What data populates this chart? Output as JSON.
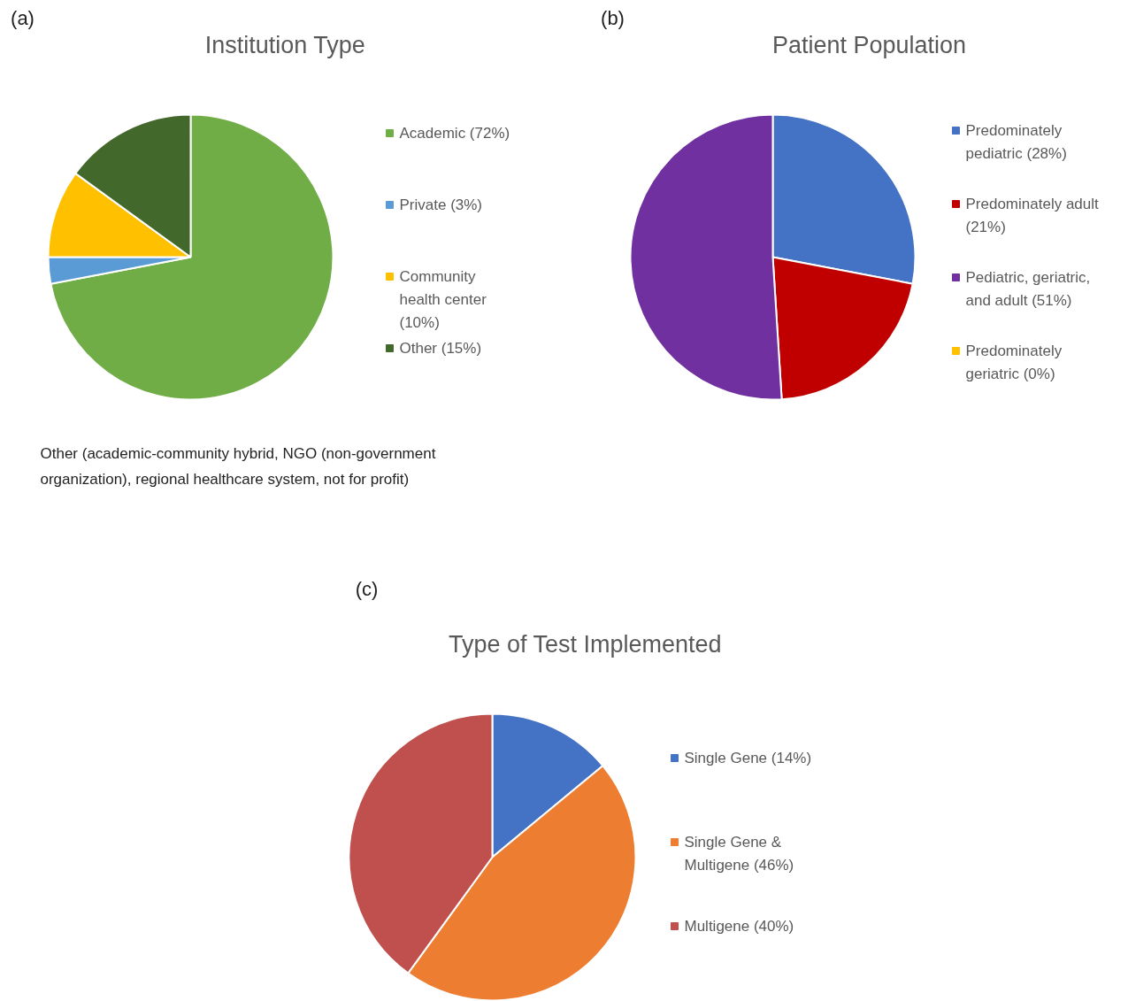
{
  "chart_data": [
    {
      "type": "pie",
      "title": "Institution Type",
      "categories": [
        "Academic (72%)",
        "Private (3%)",
        "Community health center (10%)",
        "Other (15%)"
      ],
      "values": [
        72,
        3,
        10,
        15
      ],
      "colors": [
        "#70ad47",
        "#5b9bd5",
        "#ffc000",
        "#43682b"
      ],
      "legend": "right",
      "annotations": [
        "(a)",
        "Other (academic-community hybrid, NGO (non-government organization), regional healthcare system, not for profit)"
      ]
    },
    {
      "type": "pie",
      "title": "Patient Population",
      "categories": [
        "Predominately pediatric (28%)",
        "Predominately adult (21%)",
        "Pediatric, geriatric, and adult (51%)",
        "Predominately geriatric (0%)"
      ],
      "values": [
        28,
        21,
        51,
        0
      ],
      "colors": [
        "#4472c4",
        "#c00000",
        "#7030a0",
        "#ffc000"
      ],
      "legend": "right",
      "annotations": [
        "(b)"
      ]
    },
    {
      "type": "pie",
      "title": "Type of Test Implemented",
      "categories": [
        "Single Gene (14%)",
        "Single Gene & Multigene (46%)",
        "Multigene (40%)"
      ],
      "values": [
        14,
        46,
        40
      ],
      "colors": [
        "#4472c4",
        "#ed7d31",
        "#c0504d"
      ],
      "legend": "right",
      "annotations": [
        "(c)"
      ]
    }
  ]
}
